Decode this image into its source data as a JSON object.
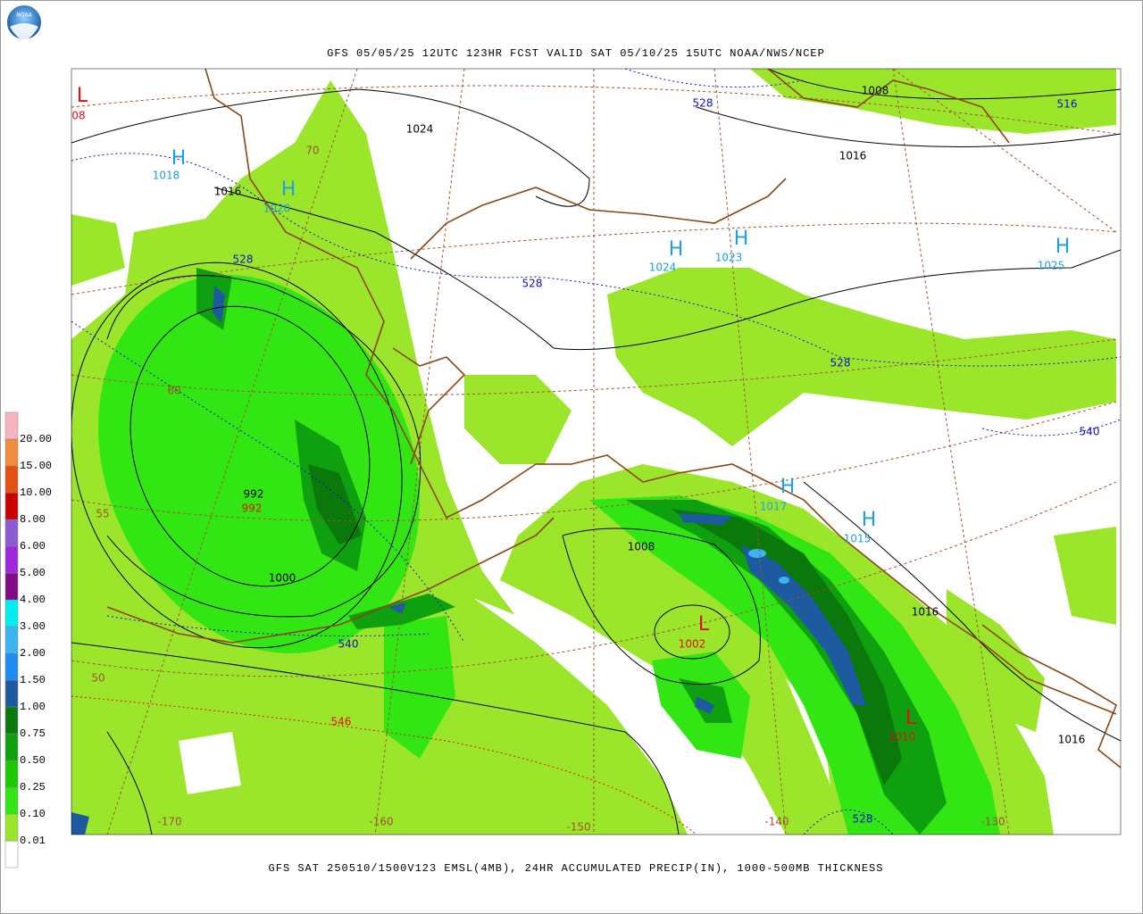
{
  "logo": "NOAA",
  "header": {
    "title": "GFS 05/05/25 12UTC 123HR FCST VALID SAT 05/10/25 15UTC NOAA/NWS/NCEP"
  },
  "footer": {
    "caption": "GFS SAT 250510/1500V123 EMSL(4MB), 24HR ACCUMULATED PRECIP(IN), 1000-500MB THICKNESS"
  },
  "legend": {
    "labels": [
      "0.01",
      "0.10",
      "0.25",
      "0.50",
      "0.75",
      "1.00",
      "1.50",
      "2.00",
      "3.00",
      "4.00",
      "5.00",
      "6.00",
      "8.00",
      "10.00",
      "15.00",
      "20.00"
    ],
    "colors": [
      "#ffffff",
      "#9be62b",
      "#32e614",
      "#1ec800",
      "#0fa00f",
      "#0a780a",
      "#1e5aa0",
      "#1e8cf0",
      "#3cb4f0",
      "#00eef0",
      "#820a82",
      "#a028dc",
      "#8c5ad2",
      "#c80000",
      "#e65014",
      "#f08c3c",
      "#f5b4c0"
    ]
  },
  "map": {
    "pressure_centers": [
      {
        "symbol": "L",
        "value": "08",
        "color": "#e01010"
      },
      {
        "symbol": "H",
        "value": "1018",
        "color": "#1ea0e0"
      },
      {
        "symbol": "H",
        "value": "1020",
        "color": "#1ea0e0"
      },
      {
        "symbol": "H",
        "value": "1024",
        "color": "#1ea0e0"
      },
      {
        "symbol": "H",
        "value": "1023",
        "color": "#1ea0e0"
      },
      {
        "symbol": "H",
        "value": "1025",
        "color": "#1ea0e0"
      },
      {
        "symbol": "H",
        "value": "1017",
        "color": "#1ea0e0"
      },
      {
        "symbol": "H",
        "value": "1015",
        "color": "#1ea0e0"
      },
      {
        "symbol": "L",
        "value": "1002",
        "color": "#e01010"
      },
      {
        "symbol": "L",
        "value": "1010",
        "color": "#e01010"
      }
    ],
    "contour_labels": [
      {
        "text": "1024",
        "color": "#000000"
      },
      {
        "text": "1016",
        "color": "#000000"
      },
      {
        "text": "1008",
        "color": "#000000"
      },
      {
        "text": "1016",
        "color": "#000000"
      },
      {
        "text": "992",
        "color": "#000000"
      },
      {
        "text": "992",
        "color": "#e01010"
      },
      {
        "text": "1000",
        "color": "#000000"
      },
      {
        "text": "1008",
        "color": "#000000"
      },
      {
        "text": "1016",
        "color": "#000000"
      },
      {
        "text": "1016",
        "color": "#000000"
      },
      {
        "text": "528",
        "color": "#1010c8"
      },
      {
        "text": "516",
        "color": "#1010c8"
      },
      {
        "text": "528",
        "color": "#1010c8"
      },
      {
        "text": "528",
        "color": "#1010c8"
      },
      {
        "text": "528",
        "color": "#1010c8"
      },
      {
        "text": "540",
        "color": "#1010c8"
      },
      {
        "text": "540",
        "color": "#1010c8"
      },
      {
        "text": "528",
        "color": "#1010c8"
      },
      {
        "text": "546",
        "color": "#e01010"
      }
    ],
    "latitude_labels": [
      "70",
      "60",
      "55",
      "50"
    ],
    "longitude_labels": [
      "-170",
      "-160",
      "-150",
      "-140",
      "-130"
    ]
  }
}
